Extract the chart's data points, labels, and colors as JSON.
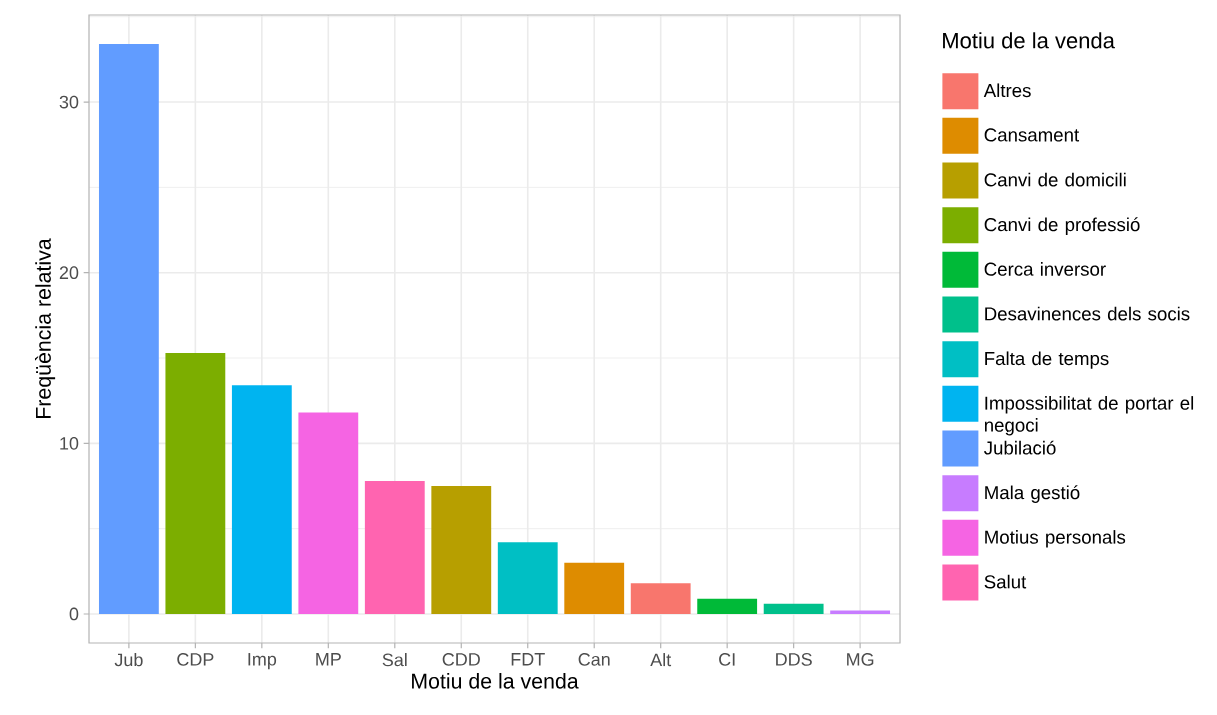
{
  "chart_data": {
    "type": "bar",
    "xlabel": "Motiu de la venda",
    "ylabel": "Freqüència relativa",
    "legend_title": "Motiu de la venda",
    "categories": [
      "Jub",
      "CDP",
      "Imp",
      "MP",
      "Sal",
      "CDD",
      "FDT",
      "Can",
      "Alt",
      "CI",
      "DDS",
      "MG"
    ],
    "series": [
      {
        "name": "Altres",
        "color": "#f8766d",
        "values": [
          null,
          null,
          null,
          null,
          null,
          null,
          null,
          null,
          1.8,
          null,
          null,
          null
        ]
      },
      {
        "name": "Cansament",
        "color": "#de8c00",
        "values": [
          null,
          null,
          null,
          null,
          null,
          null,
          null,
          3.0,
          null,
          null,
          null,
          null
        ]
      },
      {
        "name": "Canvi de domicili",
        "color": "#b79f00",
        "values": [
          null,
          null,
          null,
          null,
          null,
          7.5,
          null,
          null,
          null,
          null,
          null,
          null
        ]
      },
      {
        "name": "Canvi de professió",
        "color": "#7cae00",
        "values": [
          null,
          15.3,
          null,
          null,
          null,
          null,
          null,
          null,
          null,
          null,
          null,
          null
        ]
      },
      {
        "name": "Cerca inversor",
        "color": "#00ba38",
        "values": [
          null,
          null,
          null,
          null,
          null,
          null,
          null,
          null,
          null,
          0.9,
          null,
          null
        ]
      },
      {
        "name": "Desavinences dels socis",
        "color": "#00c08b",
        "values": [
          null,
          null,
          null,
          null,
          null,
          null,
          null,
          null,
          null,
          null,
          0.6,
          null
        ]
      },
      {
        "name": "Falta de temps",
        "color": "#00bfc4",
        "values": [
          null,
          null,
          null,
          null,
          null,
          null,
          4.2,
          null,
          null,
          null,
          null,
          null
        ]
      },
      {
        "name": "Impossibilitat de portar el negoci",
        "color": "#00b4f0",
        "values": [
          null,
          null,
          13.4,
          null,
          null,
          null,
          null,
          null,
          null,
          null,
          null,
          null
        ]
      },
      {
        "name": "Jubilació",
        "color": "#619cff",
        "values": [
          33.4,
          null,
          null,
          null,
          null,
          null,
          null,
          null,
          null,
          null,
          null,
          null
        ]
      },
      {
        "name": "Mala gestió",
        "color": "#c77cff",
        "values": [
          null,
          null,
          null,
          null,
          null,
          null,
          null,
          null,
          null,
          null,
          null,
          0.2
        ]
      },
      {
        "name": "Motius personals",
        "color": "#f564e3",
        "values": [
          null,
          null,
          null,
          11.8,
          null,
          null,
          null,
          null,
          null,
          null,
          null,
          null
        ]
      },
      {
        "name": "Salut",
        "color": "#ff64b0",
        "values": [
          null,
          null,
          null,
          null,
          7.8,
          null,
          null,
          null,
          null,
          null,
          null,
          null
        ]
      }
    ],
    "ylim": [
      -1.7,
      35.1
    ],
    "yticks": [
      0,
      10,
      20,
      30
    ],
    "grid": true,
    "legend": "right"
  }
}
